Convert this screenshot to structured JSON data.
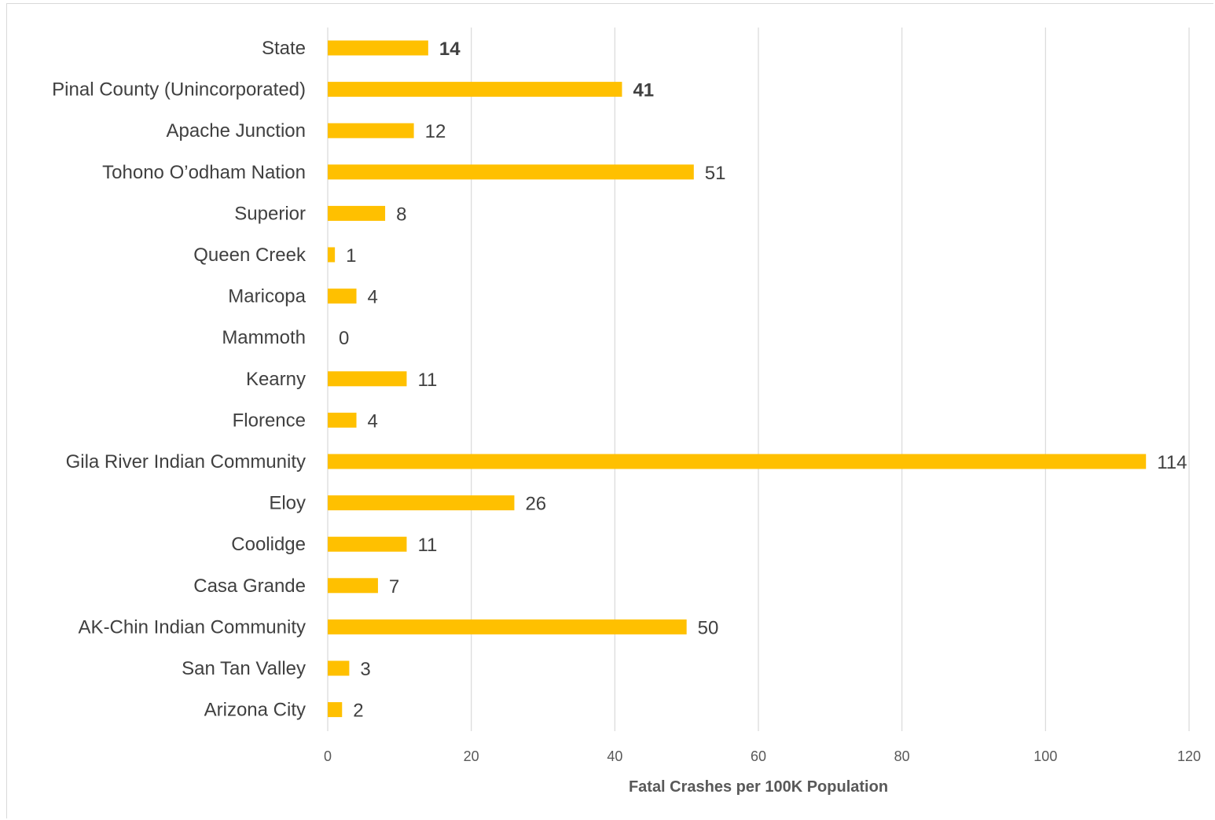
{
  "chart_data": {
    "type": "bar",
    "orientation": "horizontal",
    "categories": [
      "State",
      "Pinal County (Unincorporated)",
      "Apache Junction",
      "Tohono O’odham Nation",
      "Superior",
      "Queen Creek",
      "Maricopa",
      "Mammoth",
      "Kearny",
      "Florence",
      "Gila River Indian Community",
      "Eloy",
      "Coolidge",
      "Casa Grande",
      "AK-Chin Indian Community",
      "San Tan Valley",
      "Arizona City"
    ],
    "values": [
      14,
      41,
      12,
      51,
      8,
      1,
      4,
      0,
      11,
      4,
      114,
      26,
      11,
      7,
      50,
      3,
      2
    ],
    "data_labels": [
      "14",
      "41",
      "12",
      "51",
      "8",
      "1",
      "4",
      "0",
      "11",
      "4",
      "114",
      "26",
      "11",
      "7",
      "50",
      "3",
      "2"
    ],
    "bold_labels": [
      "State",
      "Pinal County (Unincorporated)"
    ],
    "bar_color": "#FFC000",
    "xlabel": "Fatal Crashes per 100K Population",
    "ylabel": "",
    "title": "",
    "xlim": [
      0,
      120
    ],
    "x_ticks": [
      0,
      20,
      40,
      60,
      80,
      100,
      120
    ],
    "x_tick_labels": [
      "0",
      "20",
      "40",
      "60",
      "80",
      "100",
      "120"
    ],
    "grid": "vertical",
    "legend": "none"
  }
}
